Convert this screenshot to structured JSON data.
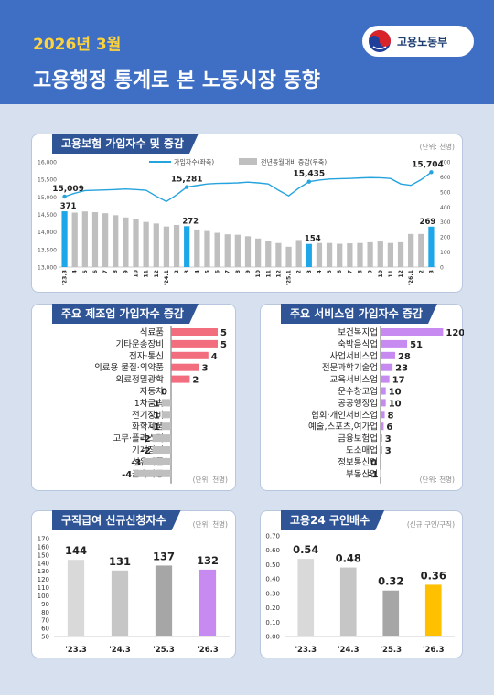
{
  "header": {
    "date": "2026년 3월",
    "title": "고용행정 통계로 본 노동시장 동향",
    "logo_text": "고용노동부"
  },
  "panel1": {
    "title": "고용보험 가입자수 및 증감",
    "unit": "(단위: 천명)",
    "legend_line": "가입자수(좌축)",
    "legend_bar": "전년동월대비 증감(우축)"
  },
  "panel2": {
    "title": "주요 제조업 가입자수 증감",
    "unit": "(단위: 천명)"
  },
  "panel3": {
    "title": "주요 서비스업 가입자수 증감",
    "unit": "(단위: 천명)"
  },
  "panel4": {
    "title": "구직급여 신규신청자수",
    "unit": "(단위: 천명)"
  },
  "panel5": {
    "title": "고용24 구인배수",
    "unit": "(신규 구인/구직)"
  },
  "chart_data": [
    {
      "type": "bar+line",
      "title": "고용보험 가입자수 및 증감",
      "x": [
        "'23.3",
        "4",
        "5",
        "6",
        "7",
        "8",
        "9",
        "10",
        "11",
        "12",
        "'24.1",
        "2",
        "3",
        "4",
        "5",
        "6",
        "7",
        "8",
        "9",
        "10",
        "11",
        "12",
        "'25.1",
        "2",
        "3",
        "4",
        "5",
        "6",
        "7",
        "8",
        "9",
        "10",
        "11",
        "12",
        "'26.1",
        "2",
        "3"
      ],
      "line_ylim": [
        13000,
        16000
      ],
      "line_yticks": [
        13000,
        13500,
        14000,
        14500,
        15000,
        15500,
        16000
      ],
      "bar_ylim": [
        0,
        700
      ],
      "bar_yticks": [
        0,
        100,
        200,
        300,
        400,
        500,
        600,
        700
      ],
      "series": [
        {
          "name": "가입자수(좌축)",
          "axis": "left",
          "color": "#25a3dd",
          "values": [
            15009,
            15105,
            15180,
            15190,
            15200,
            15210,
            15225,
            15210,
            15190,
            15020,
            14870,
            15060,
            15281,
            15325,
            15370,
            15385,
            15390,
            15400,
            15420,
            15400,
            15370,
            15190,
            15030,
            15250,
            15435,
            15480,
            15510,
            15520,
            15525,
            15540,
            15550,
            15545,
            15525,
            15370,
            15330,
            15490,
            15704
          ]
        },
        {
          "name": "전년동월대비 증감(우축)",
          "axis": "right",
          "color": "#bfbfbf",
          "highlight_color": "#1ea7e8",
          "highlight_index": [
            0,
            12,
            24,
            36
          ],
          "values": [
            371,
            362,
            370,
            365,
            358,
            345,
            330,
            320,
            300,
            290,
            270,
            280,
            272,
            250,
            240,
            228,
            218,
            215,
            205,
            190,
            175,
            160,
            135,
            180,
            154,
            160,
            160,
            155,
            158,
            160,
            165,
            170,
            160,
            165,
            220,
            220,
            269
          ]
        }
      ],
      "labels": [
        {
          "index": 0,
          "line": "15,009",
          "bar": "371"
        },
        {
          "index": 12,
          "line": "15,281",
          "bar": "272"
        },
        {
          "index": 24,
          "line": "15,435",
          "bar": "154"
        },
        {
          "index": 36,
          "line": "15,704",
          "bar": "269"
        }
      ]
    },
    {
      "type": "bar",
      "orientation": "horizontal",
      "title": "주요 제조업 가입자수 증감",
      "categories": [
        "식료품",
        "기타운송장비",
        "전자·통신",
        "의료용 물질·의약품",
        "의료정밀광학",
        "자동차",
        "1차금속",
        "전기장비",
        "화학제품",
        "고무·플라스틱",
        "기계장비",
        "섬유제품",
        "금속가공"
      ],
      "values": [
        5,
        5,
        4,
        3,
        2,
        0,
        -1,
        -1,
        -1,
        -2,
        -2,
        -3,
        -4
      ],
      "labels": [
        "5",
        "5",
        "4",
        "3",
        "2",
        "0",
        "-1",
        "-1",
        "-1",
        "-2",
        "-2",
        "-3",
        "-4"
      ],
      "pos_color": "#f26d7d",
      "neg_color": "#bfbfbf"
    },
    {
      "type": "bar",
      "orientation": "horizontal",
      "title": "주요 서비스업 가입자수 증감",
      "categories": [
        "보건복지업",
        "숙박음식업",
        "사업서비스업",
        "전문과학기술업",
        "교육서비스업",
        "운수창고업",
        "공공행정업",
        "협회·개인서비스업",
        "예술,스포츠,여가업",
        "금융보험업",
        "도소매업",
        "정보통신업",
        "부동산업"
      ],
      "values": [
        120,
        51,
        28,
        23,
        17,
        10,
        10,
        8,
        6,
        3,
        3,
        0,
        -1
      ],
      "labels": [
        "120",
        "51",
        "28",
        "23",
        "17",
        "10",
        "10",
        "8",
        "6",
        "3",
        "3",
        "0",
        "-1"
      ],
      "pos_color": "#c68af0",
      "neg_color": "#bfbfbf"
    },
    {
      "type": "bar",
      "title": "구직급여 신규신청자수",
      "categories": [
        "'23.3",
        "'24.3",
        "'25.3",
        "'26.3"
      ],
      "values": [
        144,
        131,
        137,
        132
      ],
      "labels": [
        "144",
        "131",
        "137",
        "132"
      ],
      "ylim": [
        50,
        170
      ],
      "yticks": [
        50,
        60,
        70,
        80,
        90,
        100,
        110,
        120,
        130,
        140,
        150,
        160,
        170
      ],
      "colors": [
        "#d9d9d9",
        "#c6c6c6",
        "#a6a6a6",
        "#c68af0"
      ]
    },
    {
      "type": "bar",
      "title": "고용24 구인배수",
      "categories": [
        "'23.3",
        "'24.3",
        "'25.3",
        "'26.3"
      ],
      "values": [
        0.54,
        0.48,
        0.32,
        0.36
      ],
      "labels": [
        "0.54",
        "0.48",
        "0.32",
        "0.36"
      ],
      "ylim": [
        0,
        0.7
      ],
      "yticks": [
        "0.00",
        "0.10",
        "0.20",
        "0.30",
        "0.40",
        "0.50",
        "0.60",
        "0.70"
      ],
      "colors": [
        "#d9d9d9",
        "#c6c6c6",
        "#a6a6a6",
        "#ffc000"
      ]
    }
  ]
}
